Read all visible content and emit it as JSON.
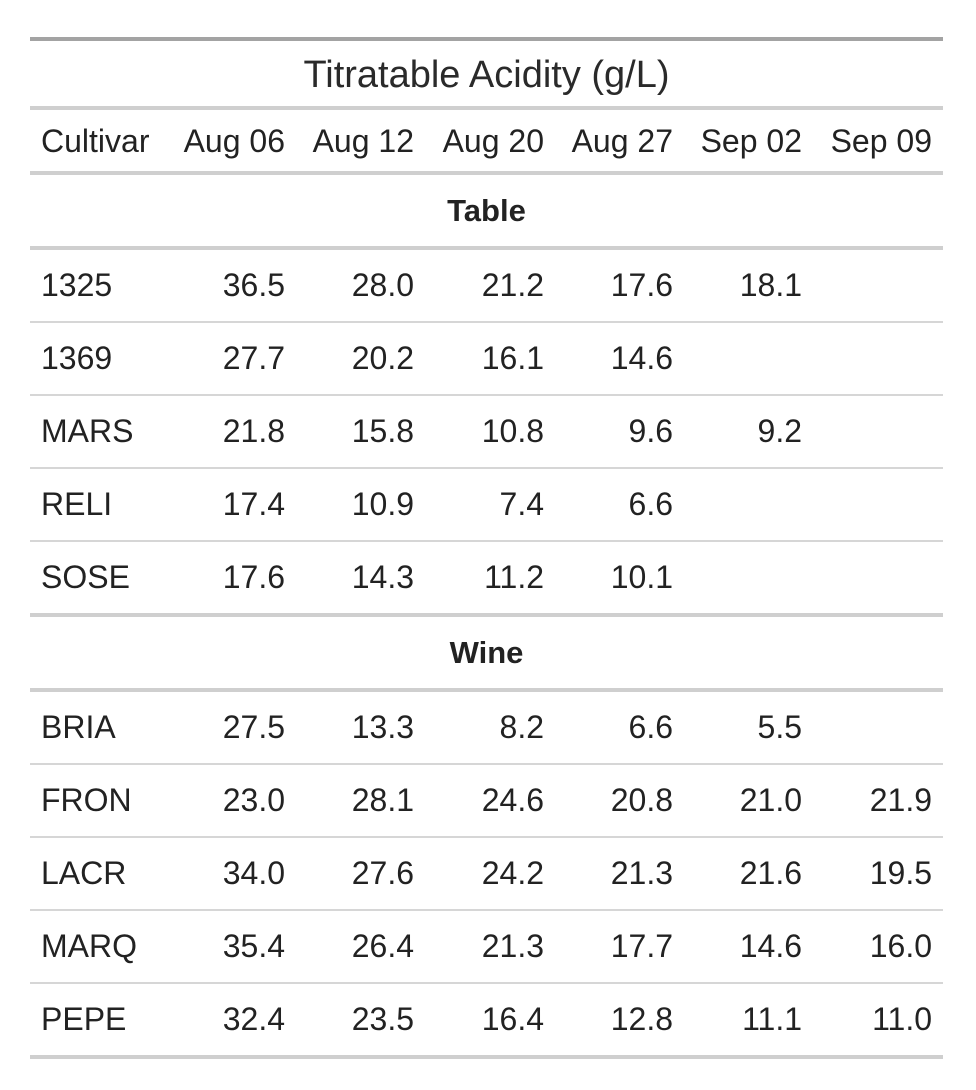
{
  "chart_data": {
    "type": "table",
    "title": "Titratable Acidity (g/L)",
    "columns": [
      "Cultivar",
      "Aug 06",
      "Aug 12",
      "Aug 20",
      "Aug 27",
      "Sep 02",
      "Sep 09"
    ],
    "groups": [
      {
        "name": "Table",
        "rows": [
          [
            "1325",
            "36.5",
            "28.0",
            "21.2",
            "17.6",
            "18.1",
            ""
          ],
          [
            "1369",
            "27.7",
            "20.2",
            "16.1",
            "14.6",
            "",
            ""
          ],
          [
            "MARS",
            "21.8",
            "15.8",
            "10.8",
            "9.6",
            "9.2",
            ""
          ],
          [
            "RELI",
            "17.4",
            "10.9",
            "7.4",
            "6.6",
            "",
            ""
          ],
          [
            "SOSE",
            "17.6",
            "14.3",
            "11.2",
            "10.1",
            "",
            ""
          ]
        ]
      },
      {
        "name": "Wine",
        "rows": [
          [
            "BRIA",
            "27.5",
            "13.3",
            "8.2",
            "6.6",
            "5.5",
            ""
          ],
          [
            "FRON",
            "23.0",
            "28.1",
            "24.6",
            "20.8",
            "21.0",
            "21.9"
          ],
          [
            "LACR",
            "34.0",
            "27.6",
            "24.2",
            "21.3",
            "21.6",
            "19.5"
          ],
          [
            "MARQ",
            "35.4",
            "26.4",
            "21.3",
            "17.7",
            "14.6",
            "16.0"
          ],
          [
            "PEPE",
            "32.4",
            "23.5",
            "16.4",
            "12.8",
            "11.1",
            "11.0"
          ]
        ]
      }
    ]
  }
}
